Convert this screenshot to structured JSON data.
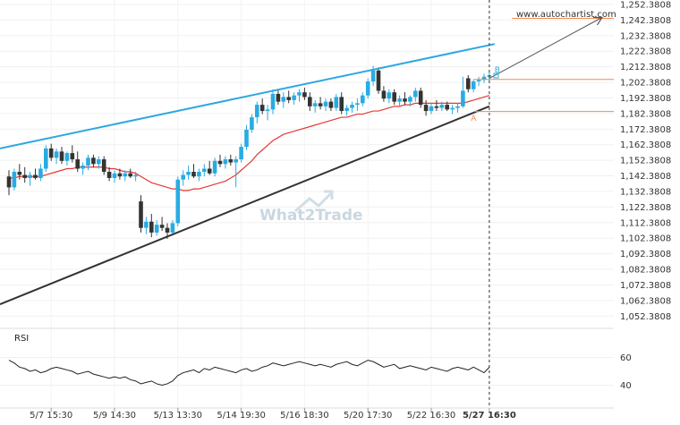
{
  "chart_data": {
    "type": "candlestick",
    "source_label": "www.autochartist.com",
    "watermark": "What2Trade",
    "y_axis": {
      "min": 1047.3808,
      "max": 1252.3808,
      "ticks": [
        1252.3808,
        1242.3808,
        1232.3808,
        1222.3808,
        1212.3808,
        1202.3808,
        1192.3808,
        1182.3808,
        1172.3808,
        1162.3808,
        1152.3808,
        1142.3808,
        1132.3808,
        1122.3808,
        1112.3808,
        1102.3808,
        1092.3808,
        1082.3808,
        1072.3808,
        1062.3808,
        1052.3808
      ],
      "tick_labels": [
        "1,252.3808",
        "1,242.3808",
        "1,232.3808",
        "1,222.3808",
        "1,212.3808",
        "1,202.3808",
        "1,192.3808",
        "1,182.3808",
        "1,172.3808",
        "1,162.3808",
        "1,152.3808",
        "1,142.3808",
        "1,132.3808",
        "1,122.3808",
        "1,112.3808",
        "1,102.3808",
        "1,092.3808",
        "1,082.3808",
        "1,072.3808",
        "1,062.3808",
        "1,052.3808"
      ]
    },
    "x_axis": {
      "bar_count": 92,
      "ticks": [
        {
          "bar": 8,
          "label": "5/7 15:30"
        },
        {
          "bar": 20,
          "label": "5/9 14:30"
        },
        {
          "bar": 32,
          "label": "5/13 13:30"
        },
        {
          "bar": 44,
          "label": "5/14 19:30"
        },
        {
          "bar": 56,
          "label": "5/16 18:30"
        },
        {
          "bar": 68,
          "label": "5/20 17:30"
        },
        {
          "bar": 80,
          "label": "5/22 16:30"
        },
        {
          "bar": 91,
          "label": "5/27 16:30"
        }
      ],
      "highlight_bar": 91
    },
    "candles": [
      {
        "o": 1142,
        "h": 1146,
        "l": 1130,
        "c": 1135
      },
      {
        "o": 1135,
        "h": 1147,
        "l": 1133,
        "c": 1145
      },
      {
        "o": 1145,
        "h": 1150,
        "l": 1140,
        "c": 1143
      },
      {
        "o": 1143,
        "h": 1148,
        "l": 1138,
        "c": 1141
      },
      {
        "o": 1141,
        "h": 1145,
        "l": 1136,
        "c": 1143
      },
      {
        "o": 1143,
        "h": 1147,
        "l": 1140,
        "c": 1141
      },
      {
        "o": 1141,
        "h": 1150,
        "l": 1139,
        "c": 1147
      },
      {
        "o": 1147,
        "h": 1162,
        "l": 1145,
        "c": 1160
      },
      {
        "o": 1160,
        "h": 1163,
        "l": 1152,
        "c": 1154
      },
      {
        "o": 1154,
        "h": 1160,
        "l": 1150,
        "c": 1158
      },
      {
        "o": 1158,
        "h": 1161,
        "l": 1150,
        "c": 1152
      },
      {
        "o": 1152,
        "h": 1158,
        "l": 1149,
        "c": 1157
      },
      {
        "o": 1157,
        "h": 1162,
        "l": 1151,
        "c": 1153
      },
      {
        "o": 1153,
        "h": 1158,
        "l": 1145,
        "c": 1147
      },
      {
        "o": 1147,
        "h": 1151,
        "l": 1143,
        "c": 1149
      },
      {
        "o": 1149,
        "h": 1156,
        "l": 1146,
        "c": 1154
      },
      {
        "o": 1154,
        "h": 1156,
        "l": 1148,
        "c": 1150
      },
      {
        "o": 1150,
        "h": 1155,
        "l": 1147,
        "c": 1153
      },
      {
        "o": 1153,
        "h": 1155,
        "l": 1143,
        "c": 1145
      },
      {
        "o": 1145,
        "h": 1148,
        "l": 1139,
        "c": 1141
      },
      {
        "o": 1141,
        "h": 1146,
        "l": 1138,
        "c": 1144
      },
      {
        "o": 1144,
        "h": 1147,
        "l": 1140,
        "c": 1142
      },
      {
        "o": 1142,
        "h": 1146,
        "l": 1139,
        "c": 1144
      },
      {
        "o": 1144,
        "h": 1147,
        "l": 1141,
        "c": 1142
      },
      {
        "o": 1142,
        "h": 1145,
        "l": 1139,
        "c": 1143
      },
      {
        "o": 1126,
        "h": 1130,
        "l": 1106,
        "c": 1109
      },
      {
        "o": 1109,
        "h": 1116,
        "l": 1105,
        "c": 1113
      },
      {
        "o": 1113,
        "h": 1118,
        "l": 1103,
        "c": 1106
      },
      {
        "o": 1106,
        "h": 1114,
        "l": 1104,
        "c": 1111
      },
      {
        "o": 1111,
        "h": 1116,
        "l": 1107,
        "c": 1109
      },
      {
        "o": 1109,
        "h": 1112,
        "l": 1102,
        "c": 1106
      },
      {
        "o": 1106,
        "h": 1114,
        "l": 1104,
        "c": 1112
      },
      {
        "o": 1112,
        "h": 1142,
        "l": 1110,
        "c": 1140
      },
      {
        "o": 1140,
        "h": 1146,
        "l": 1136,
        "c": 1143
      },
      {
        "o": 1143,
        "h": 1149,
        "l": 1140,
        "c": 1145
      },
      {
        "o": 1145,
        "h": 1150,
        "l": 1141,
        "c": 1142
      },
      {
        "o": 1142,
        "h": 1147,
        "l": 1139,
        "c": 1145
      },
      {
        "o": 1145,
        "h": 1150,
        "l": 1142,
        "c": 1147
      },
      {
        "o": 1147,
        "h": 1152,
        "l": 1143,
        "c": 1144
      },
      {
        "o": 1144,
        "h": 1154,
        "l": 1142,
        "c": 1152
      },
      {
        "o": 1152,
        "h": 1156,
        "l": 1148,
        "c": 1150
      },
      {
        "o": 1150,
        "h": 1155,
        "l": 1147,
        "c": 1153
      },
      {
        "o": 1153,
        "h": 1156,
        "l": 1149,
        "c": 1151
      },
      {
        "o": 1151,
        "h": 1155,
        "l": 1135,
        "c": 1153
      },
      {
        "o": 1153,
        "h": 1163,
        "l": 1151,
        "c": 1161
      },
      {
        "o": 1161,
        "h": 1175,
        "l": 1159,
        "c": 1172
      },
      {
        "o": 1172,
        "h": 1182,
        "l": 1170,
        "c": 1180
      },
      {
        "o": 1180,
        "h": 1190,
        "l": 1176,
        "c": 1188
      },
      {
        "o": 1188,
        "h": 1192,
        "l": 1182,
        "c": 1184
      },
      {
        "o": 1184,
        "h": 1188,
        "l": 1178,
        "c": 1185
      },
      {
        "o": 1185,
        "h": 1198,
        "l": 1182,
        "c": 1195
      },
      {
        "o": 1195,
        "h": 1198,
        "l": 1188,
        "c": 1190
      },
      {
        "o": 1190,
        "h": 1196,
        "l": 1186,
        "c": 1193
      },
      {
        "o": 1193,
        "h": 1197,
        "l": 1189,
        "c": 1191
      },
      {
        "o": 1191,
        "h": 1196,
        "l": 1188,
        "c": 1194
      },
      {
        "o": 1194,
        "h": 1198,
        "l": 1190,
        "c": 1196
      },
      {
        "o": 1196,
        "h": 1199,
        "l": 1191,
        "c": 1193
      },
      {
        "o": 1193,
        "h": 1196,
        "l": 1184,
        "c": 1187
      },
      {
        "o": 1187,
        "h": 1191,
        "l": 1183,
        "c": 1189
      },
      {
        "o": 1189,
        "h": 1193,
        "l": 1185,
        "c": 1187
      },
      {
        "o": 1187,
        "h": 1192,
        "l": 1184,
        "c": 1190
      },
      {
        "o": 1190,
        "h": 1192,
        "l": 1184,
        "c": 1186
      },
      {
        "o": 1186,
        "h": 1195,
        "l": 1184,
        "c": 1193
      },
      {
        "o": 1193,
        "h": 1196,
        "l": 1182,
        "c": 1184
      },
      {
        "o": 1184,
        "h": 1188,
        "l": 1181,
        "c": 1186
      },
      {
        "o": 1186,
        "h": 1190,
        "l": 1183,
        "c": 1188
      },
      {
        "o": 1188,
        "h": 1192,
        "l": 1184,
        "c": 1189
      },
      {
        "o": 1189,
        "h": 1196,
        "l": 1187,
        "c": 1194
      },
      {
        "o": 1194,
        "h": 1205,
        "l": 1192,
        "c": 1203
      },
      {
        "o": 1203,
        "h": 1213,
        "l": 1200,
        "c": 1210
      },
      {
        "o": 1210,
        "h": 1212,
        "l": 1195,
        "c": 1197
      },
      {
        "o": 1197,
        "h": 1200,
        "l": 1190,
        "c": 1192
      },
      {
        "o": 1192,
        "h": 1198,
        "l": 1189,
        "c": 1196
      },
      {
        "o": 1196,
        "h": 1198,
        "l": 1188,
        "c": 1190
      },
      {
        "o": 1190,
        "h": 1194,
        "l": 1187,
        "c": 1192
      },
      {
        "o": 1192,
        "h": 1196,
        "l": 1188,
        "c": 1190
      },
      {
        "o": 1190,
        "h": 1194,
        "l": 1187,
        "c": 1193
      },
      {
        "o": 1193,
        "h": 1199,
        "l": 1190,
        "c": 1197
      },
      {
        "o": 1197,
        "h": 1199,
        "l": 1186,
        "c": 1188
      },
      {
        "o": 1188,
        "h": 1191,
        "l": 1181,
        "c": 1184
      },
      {
        "o": 1184,
        "h": 1189,
        "l": 1182,
        "c": 1187
      },
      {
        "o": 1187,
        "h": 1191,
        "l": 1184,
        "c": 1186
      },
      {
        "o": 1186,
        "h": 1190,
        "l": 1184,
        "c": 1188
      },
      {
        "o": 1188,
        "h": 1190,
        "l": 1184,
        "c": 1185
      },
      {
        "o": 1185,
        "h": 1188,
        "l": 1182,
        "c": 1186
      },
      {
        "o": 1186,
        "h": 1189,
        "l": 1183,
        "c": 1187
      },
      {
        "o": 1187,
        "h": 1206,
        "l": 1186,
        "c": 1197
      },
      {
        "o": 1205,
        "h": 1207,
        "l": 1196,
        "c": 1198
      },
      {
        "o": 1198,
        "h": 1204,
        "l": 1196,
        "c": 1203
      },
      {
        "o": 1203,
        "h": 1206,
        "l": 1200,
        "c": 1204
      },
      {
        "o": 1204,
        "h": 1208,
        "l": 1202,
        "c": 1206
      },
      {
        "o": 1206,
        "h": 1209,
        "l": 1203,
        "c": 1207
      }
    ],
    "moving_average": [
      1141,
      1141,
      1142,
      1142,
      1142,
      1142,
      1142,
      1143,
      1144,
      1145,
      1146,
      1147,
      1147,
      1148,
      1148,
      1148,
      1148,
      1148,
      1148,
      1147,
      1147,
      1146,
      1145,
      1145,
      1144,
      1142,
      1140,
      1138,
      1137,
      1136,
      1135,
      1134,
      1134,
      1133,
      1133,
      1134,
      1134,
      1135,
      1136,
      1137,
      1138,
      1139,
      1141,
      1143,
      1146,
      1149,
      1152,
      1156,
      1159,
      1162,
      1165,
      1167,
      1169,
      1170,
      1171,
      1172,
      1173,
      1174,
      1175,
      1176,
      1177,
      1178,
      1179,
      1180,
      1180,
      1181,
      1182,
      1182,
      1183,
      1184,
      1184,
      1185,
      1186,
      1187,
      1187,
      1188,
      1188,
      1189,
      1189,
      1189,
      1189,
      1189,
      1189,
      1189,
      1189,
      1189,
      1189,
      1190,
      1191,
      1192,
      1193,
      1194
    ],
    "rsi": {
      "title": "RSI",
      "min": 30,
      "max": 70,
      "tick_labels": [
        {
          "value": 60,
          "label": "60"
        },
        {
          "value": 40,
          "label": "40"
        }
      ],
      "values": [
        58,
        56,
        53,
        52,
        50,
        51,
        49,
        50,
        52,
        53,
        52,
        51,
        50,
        48,
        49,
        50,
        48,
        47,
        46,
        45,
        46,
        45,
        46,
        44,
        43,
        41,
        42,
        43,
        41,
        40,
        41,
        43,
        47,
        49,
        50,
        51,
        49,
        52,
        51,
        53,
        52,
        51,
        50,
        49,
        51,
        52,
        50,
        51,
        53,
        54,
        56,
        55,
        54,
        55,
        56,
        57,
        56,
        55,
        54,
        55,
        54,
        53,
        55,
        56,
        57,
        55,
        54,
        56,
        58,
        57,
        55,
        53,
        54,
        55,
        52,
        53,
        54,
        53,
        52,
        51,
        53,
        52,
        51,
        50,
        52,
        53,
        52,
        51,
        53,
        51,
        49,
        53
      ]
    },
    "pattern": {
      "type": "rising wedge",
      "upper_line": {
        "x0": 0,
        "y0": 1160,
        "x1": 92,
        "y1": 1227
      },
      "lower_line": {
        "x0": 0,
        "y0": 1060,
        "x1": 91,
        "y1": 1187
      },
      "projection": {
        "x0": 91,
        "y0": 1205,
        "x1": 115,
        "y1": 1245
      },
      "levels": [
        1204.3,
        1183.7
      ],
      "point_labels": [
        {
          "label": "A",
          "x": 88,
          "y": 1180
        },
        {
          "label": "B",
          "x": 92.5,
          "y": 1211
        }
      ]
    },
    "colors": {
      "bull": "#29abe2",
      "bear": "#333333",
      "upper_line": "#2ea7e0",
      "lower_line": "#333333",
      "moving_average": "#e53935",
      "levels": "#f08a4b",
      "rsi": "#222222"
    }
  }
}
